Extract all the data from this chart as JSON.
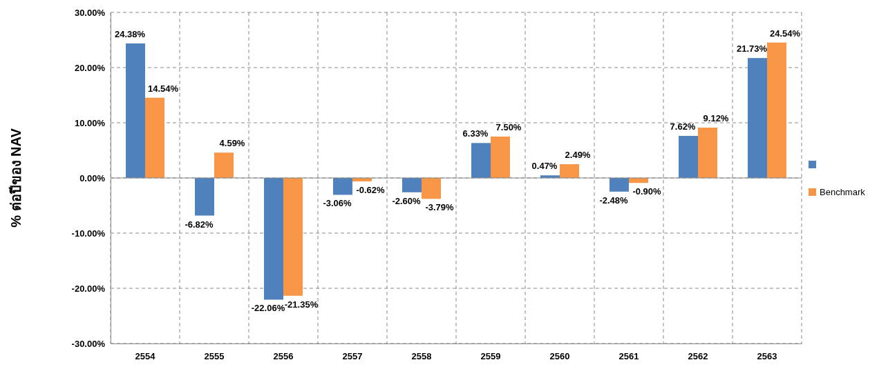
{
  "chart_data": {
    "type": "bar",
    "ylabel": "% ต่อปีของ NAV",
    "categories": [
      "2554",
      "2555",
      "2556",
      "2557",
      "2558",
      "2559",
      "2560",
      "2561",
      "2562",
      "2563"
    ],
    "series": [
      {
        "color": "#4f81bd",
        "values": [
          24.38,
          -6.82,
          -22.06,
          -3.06,
          -2.6,
          6.33,
          0.47,
          -2.48,
          7.62,
          21.73
        ],
        "value_labels": [
          "24.38%",
          "-6.82%",
          "-22.06%",
          "-3.06%",
          "-2.60%",
          "6.33%",
          "0.47%",
          "-2.48%",
          "7.62%",
          "21.73%"
        ]
      },
      {
        "name": "Benchmark",
        "color": "#f79646",
        "values": [
          14.54,
          4.59,
          -21.35,
          -0.62,
          -3.79,
          7.5,
          2.49,
          -0.9,
          9.12,
          24.54
        ],
        "value_labels": [
          "14.54%",
          "4.59%",
          "-21.35%",
          "-0.62%",
          "-3.79%",
          "7.50%",
          "2.49%",
          "-0.90%",
          "9.12%",
          "24.54%"
        ]
      }
    ],
    "ylim": [
      -30,
      30
    ],
    "yticks": [
      {
        "value": -30,
        "label": "-30.00%"
      },
      {
        "value": -20,
        "label": "-20.00%"
      },
      {
        "value": -10,
        "label": "-10.00%"
      },
      {
        "value": 0,
        "label": "0.00%"
      },
      {
        "value": 10,
        "label": "10.00%"
      },
      {
        "value": 20,
        "label": "20.00%"
      },
      {
        "value": 30,
        "label": "30.00%"
      }
    ],
    "grid": true,
    "legend": "right"
  }
}
